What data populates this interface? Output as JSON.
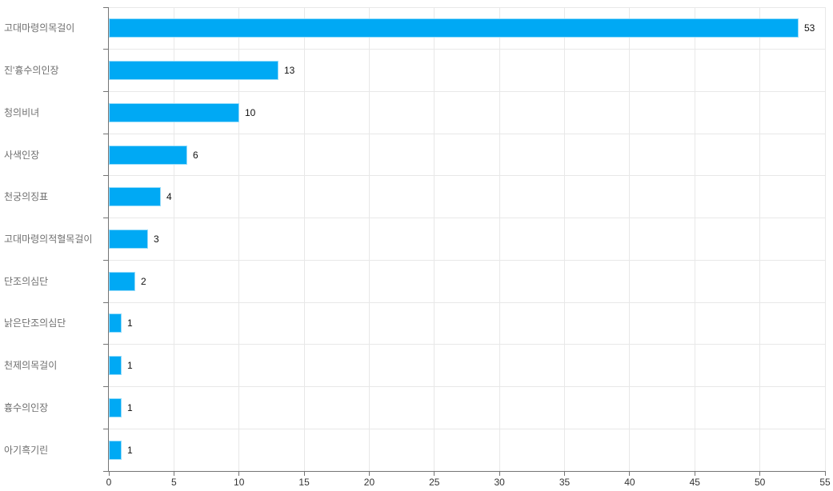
{
  "chart_data": {
    "type": "bar",
    "orientation": "horizontal",
    "title": "",
    "xlabel": "",
    "ylabel": "",
    "categories": [
      "고대마령의목걸이",
      "진'흉수의인장",
      "청의비녀",
      "사색인장",
      "천궁의징표",
      "고대마령의적혈목걸이",
      "단조의심단",
      "낡은단조의심단",
      "천제의목걸이",
      "흉수의인장",
      "아기흑기린"
    ],
    "values": [
      53,
      13,
      10,
      6,
      4,
      3,
      2,
      1,
      1,
      1,
      1
    ],
    "value_labels": [
      "53",
      "13",
      "10",
      "6",
      "4",
      "3",
      "2",
      "1",
      "1",
      "1",
      "1"
    ],
    "xlim": [
      0,
      55
    ],
    "x_ticks": [
      0,
      5,
      10,
      15,
      20,
      25,
      30,
      35,
      40,
      45,
      50,
      55
    ],
    "grid": true,
    "legend": false,
    "colors": {
      "bar": "#00a9f4",
      "bar_border": "#96dcfa",
      "grid": "#e8e8e8",
      "axis": "#757575",
      "tick_label": "#333333",
      "category_label": "#6e6e6e",
      "value_label": "#111111",
      "background": "#ffffff"
    }
  }
}
